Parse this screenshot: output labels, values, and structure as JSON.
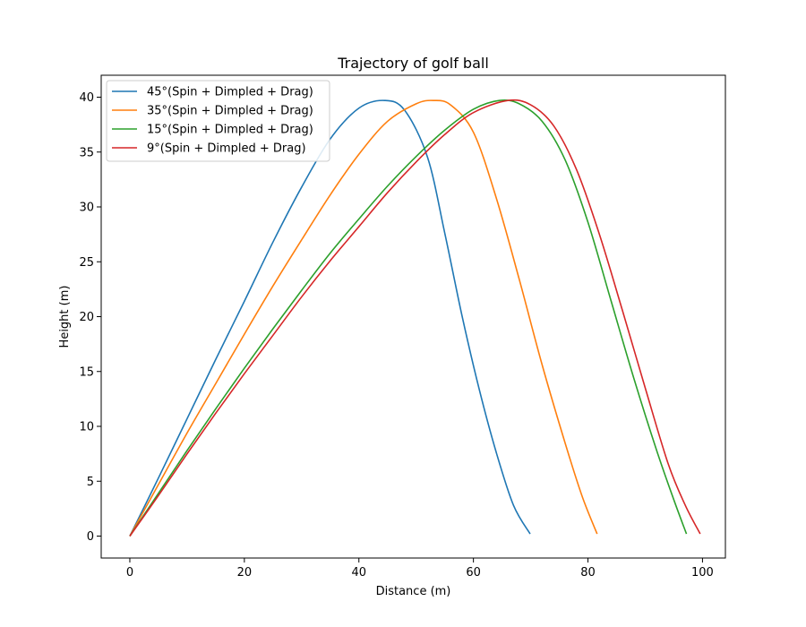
{
  "chart_data": {
    "type": "line",
    "title": "Trajectory of golf ball",
    "xlabel": "Distance (m)",
    "ylabel": "Height (m)",
    "xlim": [
      -5,
      104
    ],
    "ylim": [
      -2,
      42
    ],
    "xticks": [
      0,
      20,
      40,
      60,
      80,
      100
    ],
    "yticks": [
      0,
      5,
      10,
      15,
      20,
      25,
      30,
      35,
      40
    ],
    "grid": false,
    "legend_position": "top-left",
    "series": [
      {
        "name": "45°(Spin + Dimpled + Drag)",
        "color": "#1f77b4",
        "x": [
          0,
          5,
          10,
          15,
          20,
          25,
          30,
          35,
          40,
          44.5,
          48,
          52,
          55,
          58,
          61,
          64,
          67,
          69.9
        ],
        "y": [
          0,
          5.3,
          10.7,
          16.1,
          21.4,
          26.8,
          31.8,
          36.2,
          39.0,
          39.7,
          38.8,
          34.5,
          27.6,
          20.1,
          13.4,
          7.6,
          2.8,
          0.2
        ]
      },
      {
        "name": "35°(Spin + Dimpled + Drag)",
        "color": "#ff7f0e",
        "x": [
          0,
          5,
          10,
          15,
          20,
          25,
          30,
          35,
          40,
          45,
          50,
          53,
          56,
          60,
          64,
          68,
          72,
          76,
          79,
          81.6
        ],
        "y": [
          0,
          4.7,
          9.4,
          13.9,
          18.4,
          22.8,
          27.0,
          31.1,
          34.8,
          37.8,
          39.4,
          39.7,
          39.3,
          36.8,
          30.8,
          23.4,
          15.6,
          8.5,
          3.6,
          0.2
        ]
      },
      {
        "name": "15°(Spin + Dimpled + Drag)",
        "color": "#2ca02c",
        "x": [
          0,
          5,
          10,
          15,
          20,
          25,
          30,
          35,
          40,
          45,
          50,
          55,
          60,
          64.5,
          68,
          72,
          76,
          80,
          84,
          88,
          92,
          95,
          97.2
        ],
        "y": [
          0,
          3.9,
          7.8,
          11.6,
          15.3,
          18.9,
          22.4,
          25.8,
          28.9,
          31.9,
          34.6,
          37.0,
          38.9,
          39.7,
          39.4,
          37.8,
          34.3,
          28.6,
          21.5,
          14.4,
          7.8,
          3.3,
          0.2
        ]
      },
      {
        "name": "9°(Spin + Dimpled + Drag)",
        "color": "#d62728",
        "x": [
          0,
          5,
          10,
          15,
          20,
          25,
          30,
          35,
          40,
          45,
          50,
          55,
          60,
          66,
          70,
          74,
          78,
          82,
          86,
          90,
          94,
          97,
          99.6
        ],
        "y": [
          0,
          3.7,
          7.5,
          11.2,
          14.8,
          18.3,
          21.8,
          25.1,
          28.2,
          31.3,
          34.1,
          36.6,
          38.6,
          39.7,
          39.3,
          37.4,
          33.4,
          27.5,
          20.6,
          13.5,
          6.6,
          2.8,
          0.2
        ]
      }
    ]
  }
}
